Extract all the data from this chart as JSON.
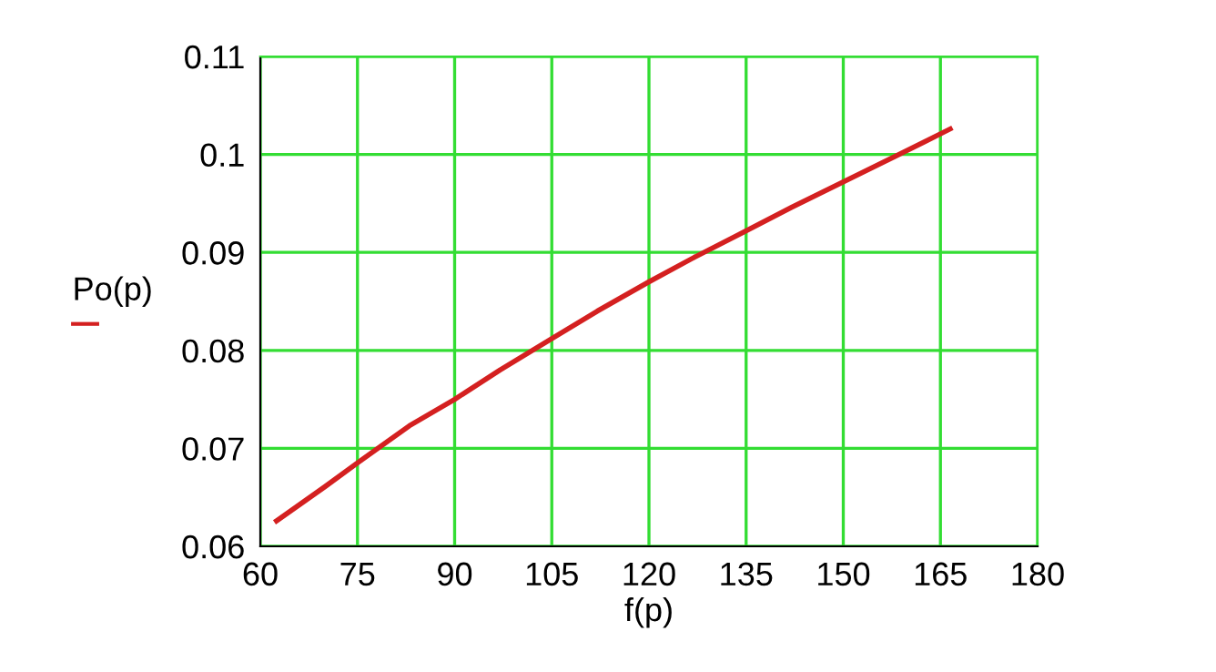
{
  "chart_data": {
    "type": "line",
    "xlabel": "f(p)",
    "ylabel": "Po(p)",
    "x": [
      62.5,
      70,
      76,
      83,
      90,
      97,
      105,
      112,
      120,
      127,
      135,
      142,
      150,
      158,
      166.5
    ],
    "series": [
      {
        "color": "#d42020",
        "values": [
          0.0626,
          0.0661,
          0.069,
          0.0723,
          0.075,
          0.078,
          0.0812,
          0.084,
          0.087,
          0.0895,
          0.0922,
          0.0946,
          0.0972,
          0.0998,
          0.1026
        ]
      }
    ],
    "xlim": [
      60,
      180
    ],
    "xticks": [
      60,
      75,
      90,
      105,
      120,
      135,
      150,
      165,
      180
    ],
    "ylim": [
      0.06,
      0.11
    ],
    "yticks": [
      0.06,
      0.07,
      0.08,
      0.09,
      0.1,
      0.11
    ],
    "grid": true,
    "marker": "none",
    "line_style": "solid"
  }
}
